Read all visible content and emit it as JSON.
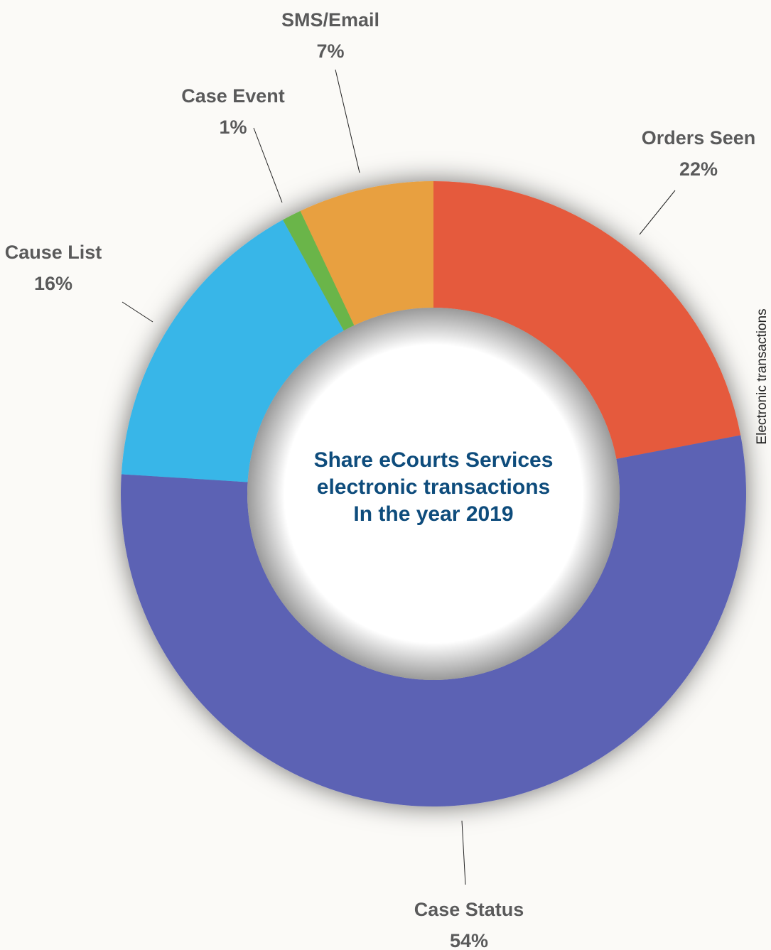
{
  "chart_data": {
    "type": "donut",
    "title": [
      "Share eCourts Services",
      "electronic transactions",
      "In the year 2019"
    ],
    "side_note": "Electronic transactions",
    "categories": [
      "Orders Seen",
      "Case Status",
      "Cause List",
      "Case Event",
      "SMS/Email"
    ],
    "values": [
      22,
      54,
      16,
      1,
      7
    ],
    "value_labels": [
      "22%",
      "54%",
      "16%",
      "1%",
      "7%"
    ],
    "colors": [
      "#e55a3c",
      "#5b62b4",
      "#38b6e8",
      "#6bb54a",
      "#e8a040"
    ]
  }
}
